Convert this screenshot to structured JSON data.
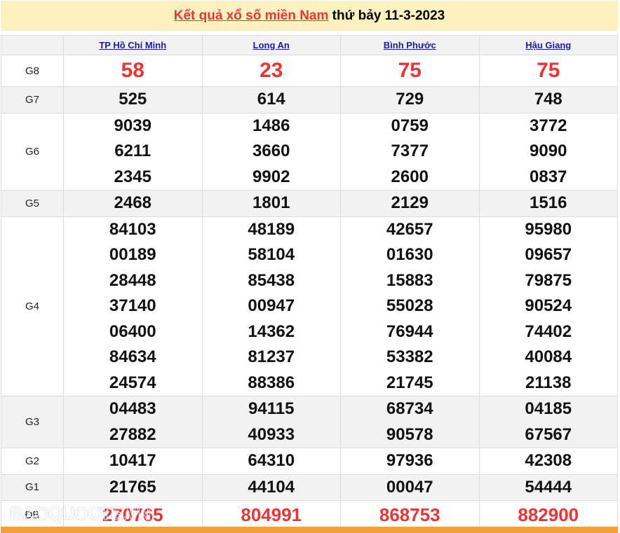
{
  "title": {
    "link": "Kết quả xổ số miền Nam",
    "rest": " thứ bảy 11-3-2023"
  },
  "provinces": [
    "TP Hồ Chí Minh",
    "Long An",
    "Bình Phước",
    "Hậu Giang"
  ],
  "rows": [
    {
      "label": "G8",
      "values": [
        [
          "58"
        ],
        [
          "23"
        ],
        [
          "75"
        ],
        [
          "75"
        ]
      ]
    },
    {
      "label": "G7",
      "values": [
        [
          "525"
        ],
        [
          "614"
        ],
        [
          "729"
        ],
        [
          "748"
        ]
      ]
    },
    {
      "label": "G6",
      "values": [
        [
          "9039",
          "6211",
          "2345"
        ],
        [
          "1486",
          "3660",
          "9902"
        ],
        [
          "0759",
          "7377",
          "2600"
        ],
        [
          "3772",
          "9090",
          "0837"
        ]
      ]
    },
    {
      "label": "G5",
      "values": [
        [
          "2468"
        ],
        [
          "1801"
        ],
        [
          "2129"
        ],
        [
          "1516"
        ]
      ]
    },
    {
      "label": "G4",
      "values": [
        [
          "84103",
          "00189",
          "28448",
          "37140",
          "06400",
          "84634",
          "24574"
        ],
        [
          "48189",
          "58104",
          "85438",
          "00947",
          "14362",
          "81237",
          "88386"
        ],
        [
          "42657",
          "01630",
          "15883",
          "55028",
          "76944",
          "53382",
          "21745"
        ],
        [
          "95980",
          "09657",
          "79875",
          "90524",
          "74402",
          "40084",
          "21138"
        ]
      ]
    },
    {
      "label": "G3",
      "values": [
        [
          "04483",
          "27882"
        ],
        [
          "94115",
          "40933"
        ],
        [
          "68734",
          "90578"
        ],
        [
          "04185",
          "67567"
        ]
      ]
    },
    {
      "label": "G2",
      "values": [
        [
          "10417"
        ],
        [
          "64310"
        ],
        [
          "97936"
        ],
        [
          "42308"
        ]
      ]
    },
    {
      "label": "G1",
      "values": [
        [
          "21765"
        ],
        [
          "44104"
        ],
        [
          "00047"
        ],
        [
          "54444"
        ]
      ]
    },
    {
      "label": "ĐB",
      "values": [
        [
          "270765"
        ],
        [
          "804991"
        ],
        [
          "868753"
        ],
        [
          "882900"
        ]
      ]
    }
  ],
  "watermark": "BAOQUOCTE.VN",
  "colors": {
    "red": "#ee3333",
    "header_bg": "#fdf1c0",
    "footer": "#f3a03c",
    "link": "#1a1aaa"
  }
}
